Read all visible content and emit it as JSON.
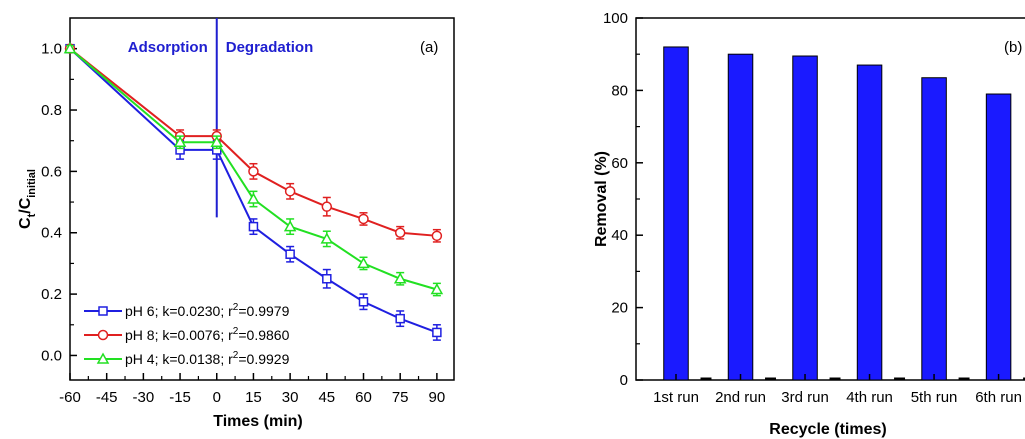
{
  "colors": {
    "ph6": "#1f1fe0",
    "ph8": "#e02020",
    "ph4": "#22e022",
    "divider": "#1f1fd0",
    "bar_fill": "#1a1aff"
  },
  "chart_data": [
    {
      "type": "line",
      "panel_label": "(a)",
      "xlabel": "Times (min)",
      "ylabel": "Ct/Cinitial",
      "ylabel_main": "C",
      "ylabel_sub1": "t",
      "ylabel_mid": "/C",
      "ylabel_sub2": "initial",
      "xlim": [
        -60,
        97
      ],
      "ylim": [
        -0.08,
        1.1
      ],
      "xticks": [
        "-60",
        "-45",
        "-30",
        "-15",
        "0",
        "15",
        "30",
        "45",
        "60",
        "75",
        "90"
      ],
      "yticks": [
        "0.0",
        "0.2",
        "0.4",
        "0.6",
        "0.8",
        "1.0"
      ],
      "region_labels": {
        "adsorption": "Adsorption",
        "degradation": "Degradation"
      },
      "divider_x": 0,
      "x": [
        -60,
        -15,
        0,
        15,
        30,
        45,
        60,
        75,
        90
      ],
      "series": [
        {
          "key": "ph6",
          "marker": "square",
          "legend": {
            "prefix": "pH 6; k=0.0230; r",
            "sup": "2",
            "suffix": "=0.9979"
          },
          "values": [
            1.0,
            0.67,
            0.67,
            0.42,
            0.33,
            0.25,
            0.175,
            0.12,
            0.075
          ],
          "errors": [
            0.01,
            0.03,
            0.03,
            0.025,
            0.025,
            0.03,
            0.025,
            0.025,
            0.025
          ]
        },
        {
          "key": "ph8",
          "marker": "circle",
          "legend": {
            "prefix": "pH 8; k=0.0076; r",
            "sup": "2",
            "suffix": "=0.9860"
          },
          "values": [
            1.0,
            0.715,
            0.715,
            0.6,
            0.535,
            0.485,
            0.445,
            0.4,
            0.39
          ],
          "errors": [
            0.01,
            0.02,
            0.02,
            0.025,
            0.025,
            0.03,
            0.02,
            0.02,
            0.02
          ]
        },
        {
          "key": "ph4",
          "marker": "triangle",
          "legend": {
            "prefix": "pH 4; k=0.0138; r",
            "sup": "2",
            "suffix": "=0.9929"
          },
          "values": [
            1.0,
            0.695,
            0.695,
            0.51,
            0.42,
            0.38,
            0.3,
            0.25,
            0.215
          ],
          "errors": [
            0.01,
            0.02,
            0.02,
            0.025,
            0.025,
            0.025,
            0.02,
            0.02,
            0.02
          ]
        }
      ]
    },
    {
      "type": "bar",
      "panel_label": "(b)",
      "xlabel": "Recycle (times)",
      "ylabel": "Removal (%)",
      "ylim": [
        0,
        100
      ],
      "yticks": [
        "0",
        "20",
        "40",
        "60",
        "80",
        "100"
      ],
      "categories": [
        "1st run",
        "2nd run",
        "3rd run",
        "4th run",
        "5th run",
        "6th run"
      ],
      "values": [
        92,
        90,
        89.5,
        87,
        83.5,
        79
      ]
    }
  ]
}
